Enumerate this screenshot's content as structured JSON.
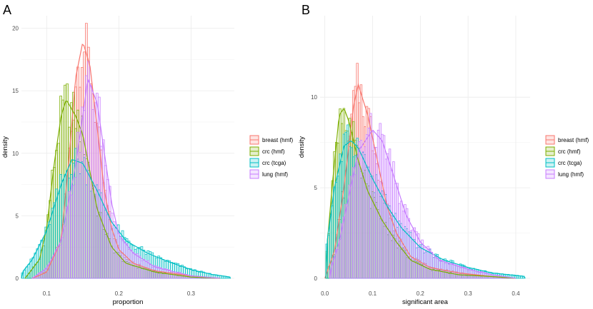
{
  "colors": {
    "breast (hmf)": "#F8766D",
    "crc (hmf)": "#7CAE00",
    "crc (tcga)": "#00BFC4",
    "lung (hmf)": "#C77CFF"
  },
  "chart_data": [
    {
      "panel": "A",
      "type": "histogram-density",
      "xlabel": "proportion",
      "ylabel": "density",
      "xlim": [
        0.065,
        0.36
      ],
      "ylim": [
        0,
        21
      ],
      "xticks": [
        "0.1",
        "0.2",
        "0.3"
      ],
      "yticks": [
        "0",
        "5",
        "10",
        "15",
        "20"
      ],
      "grid": true,
      "legend_position": "right",
      "series": [
        {
          "name": "breast (hmf)",
          "density_points": [
            [
              0.08,
              0
            ],
            [
              0.1,
              0.5
            ],
            [
              0.12,
              3
            ],
            [
              0.13,
              9
            ],
            [
              0.14,
              16
            ],
            [
              0.15,
              18.9
            ],
            [
              0.16,
              17
            ],
            [
              0.17,
              12
            ],
            [
              0.18,
              7
            ],
            [
              0.19,
              4
            ],
            [
              0.2,
              2.3
            ],
            [
              0.22,
              1.2
            ],
            [
              0.25,
              0.6
            ],
            [
              0.3,
              0.2
            ],
            [
              0.34,
              0
            ]
          ]
        },
        {
          "name": "crc (hmf)",
          "density_points": [
            [
              0.07,
              0
            ],
            [
              0.09,
              1.5
            ],
            [
              0.1,
              4
            ],
            [
              0.11,
              9
            ],
            [
              0.12,
              13
            ],
            [
              0.127,
              14.3
            ],
            [
              0.14,
              13
            ],
            [
              0.15,
              11.5
            ],
            [
              0.17,
              5.5
            ],
            [
              0.19,
              2.5
            ],
            [
              0.21,
              1.2
            ],
            [
              0.25,
              0.5
            ],
            [
              0.3,
              0.1
            ],
            [
              0.34,
              0
            ]
          ]
        },
        {
          "name": "crc (tcga)",
          "density_points": [
            [
              0.065,
              0.4
            ],
            [
              0.08,
              1.5
            ],
            [
              0.1,
              3.8
            ],
            [
              0.12,
              7.5
            ],
            [
              0.135,
              9.5
            ],
            [
              0.15,
              9.2
            ],
            [
              0.17,
              7
            ],
            [
              0.19,
              4.5
            ],
            [
              0.21,
              3
            ],
            [
              0.24,
              2
            ],
            [
              0.27,
              1.3
            ],
            [
              0.3,
              0.7
            ],
            [
              0.33,
              0.3
            ],
            [
              0.355,
              0.1
            ]
          ]
        },
        {
          "name": "lung (hmf)",
          "density_points": [
            [
              0.08,
              0
            ],
            [
              0.1,
              0.8
            ],
            [
              0.12,
              3
            ],
            [
              0.14,
              9
            ],
            [
              0.15,
              13
            ],
            [
              0.157,
              16
            ],
            [
              0.17,
              14
            ],
            [
              0.18,
              10
            ],
            [
              0.19,
              6
            ],
            [
              0.2,
              3.5
            ],
            [
              0.22,
              2
            ],
            [
              0.25,
              0.9
            ],
            [
              0.3,
              0.2
            ],
            [
              0.34,
              0
            ]
          ]
        }
      ]
    },
    {
      "panel": "B",
      "type": "histogram-density",
      "xlabel": "significant area",
      "ylabel": "density",
      "xlim": [
        -0.01,
        0.43
      ],
      "ylim": [
        0,
        14.5
      ],
      "xticks": [
        "0.0",
        "0.1",
        "0.2",
        "0.3",
        "0.4"
      ],
      "yticks": [
        "0",
        "5",
        "10"
      ],
      "grid": true,
      "legend_position": "right",
      "series": [
        {
          "name": "breast (hmf)",
          "density_points": [
            [
              0,
              0
            ],
            [
              0.02,
              1.5
            ],
            [
              0.04,
              5
            ],
            [
              0.06,
              9.5
            ],
            [
              0.07,
              10.7
            ],
            [
              0.09,
              9
            ],
            [
              0.11,
              6.5
            ],
            [
              0.13,
              4
            ],
            [
              0.15,
              2.5
            ],
            [
              0.18,
              1.2
            ],
            [
              0.22,
              0.6
            ],
            [
              0.28,
              0.3
            ],
            [
              0.35,
              0.1
            ],
            [
              0.4,
              0
            ]
          ]
        },
        {
          "name": "crc (hmf)",
          "density_points": [
            [
              0.002,
              1
            ],
            [
              0.015,
              5
            ],
            [
              0.03,
              9
            ],
            [
              0.04,
              9.4
            ],
            [
              0.05,
              8.7
            ],
            [
              0.07,
              6.5
            ],
            [
              0.09,
              4.8
            ],
            [
              0.12,
              3.2
            ],
            [
              0.15,
              2
            ],
            [
              0.18,
              1
            ],
            [
              0.22,
              0.5
            ],
            [
              0.28,
              0.2
            ],
            [
              0.35,
              0.1
            ],
            [
              0.4,
              0
            ]
          ]
        },
        {
          "name": "crc (tcga)",
          "density_points": [
            [
              0.002,
              1.5
            ],
            [
              0.02,
              5
            ],
            [
              0.04,
              7.3
            ],
            [
              0.055,
              7.6
            ],
            [
              0.07,
              7.2
            ],
            [
              0.1,
              5.5
            ],
            [
              0.13,
              4
            ],
            [
              0.16,
              2.8
            ],
            [
              0.2,
              1.7
            ],
            [
              0.25,
              1
            ],
            [
              0.3,
              0.6
            ],
            [
              0.35,
              0.3
            ],
            [
              0.42,
              0.1
            ]
          ]
        },
        {
          "name": "lung (hmf)",
          "density_points": [
            [
              0.01,
              0.3
            ],
            [
              0.03,
              2
            ],
            [
              0.05,
              4.5
            ],
            [
              0.07,
              7
            ],
            [
              0.1,
              8.2
            ],
            [
              0.12,
              7.6
            ],
            [
              0.14,
              6
            ],
            [
              0.17,
              3.5
            ],
            [
              0.2,
              2
            ],
            [
              0.24,
              1
            ],
            [
              0.3,
              0.5
            ],
            [
              0.35,
              0.2
            ],
            [
              0.4,
              0
            ]
          ]
        }
      ]
    }
  ],
  "labels": {
    "panel_a": "A",
    "panel_b": "B"
  }
}
